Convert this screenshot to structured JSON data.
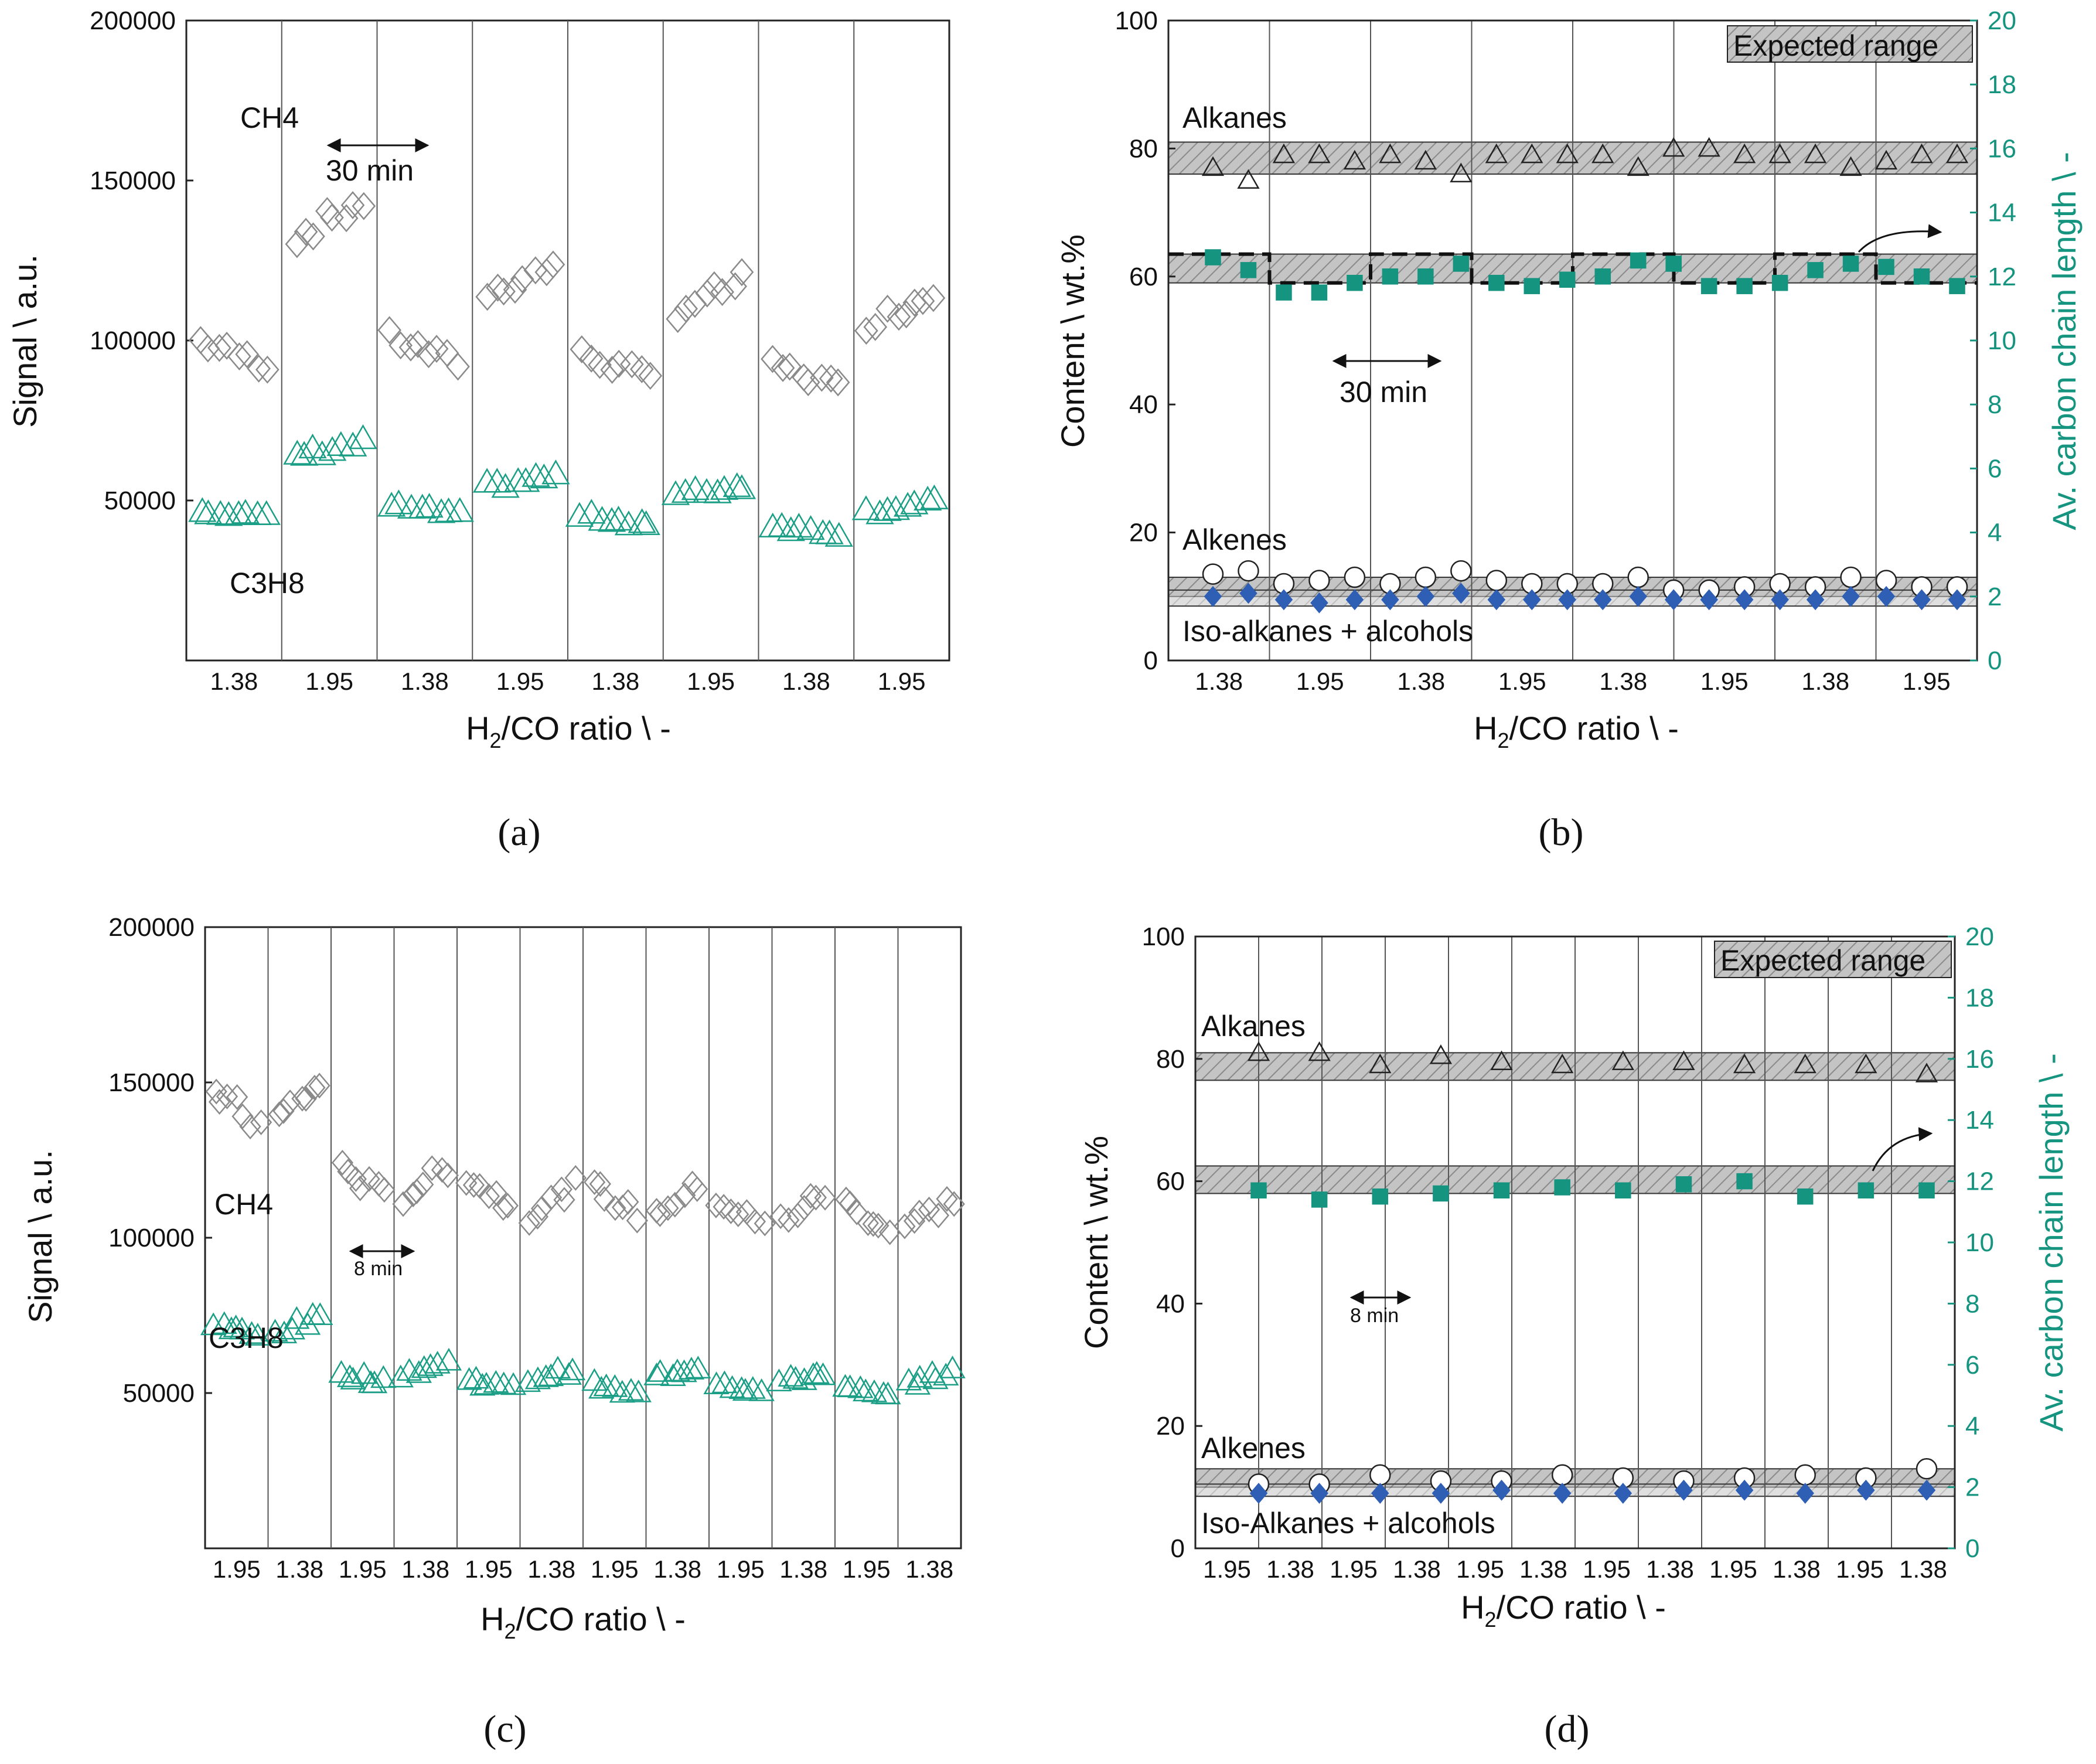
{
  "figure": {
    "panel_labels": [
      "(a)",
      "(b)",
      "(c)",
      "(d)"
    ],
    "colors": {
      "ch4": "#8a8a8a",
      "c3h8": "#1a9e85",
      "teal_square": "#159480",
      "blue_diamond": "#2e5fb5",
      "band_fill": "#bdbdbd",
      "right_axis": "#159480"
    }
  },
  "chart_data": [
    {
      "panel": "(a)",
      "type": "scatter",
      "ylabel": "Signal \\ a.u.",
      "xlabel_main": "H",
      "xlabel_sub": "2",
      "xlabel_rest": "/CO ratio \\ -",
      "ylim": [
        0,
        200000
      ],
      "yticks": [
        50000,
        100000,
        150000,
        200000
      ],
      "segment_count": 8,
      "segment_labels": [
        "1.38",
        "1.95",
        "1.38",
        "1.95",
        "1.38",
        "1.95",
        "1.38",
        "1.95"
      ],
      "annotations": {
        "ch4": "CH4",
        "c3h8": "C3H8",
        "interval": "30 min"
      },
      "series": [
        {
          "name": "CH4",
          "marker": "diamond",
          "segment_means": [
            96000,
            138000,
            97000,
            119000,
            92000,
            114000,
            89000,
            110000
          ]
        },
        {
          "name": "C3H8",
          "marker": "triangle",
          "segment_means": [
            46000,
            66000,
            47000,
            56000,
            44000,
            53000,
            41000,
            48000
          ]
        }
      ]
    },
    {
      "panel": "(b)",
      "type": "scatter",
      "ylabel": "Content \\ wt.%",
      "y2label": "Av. carbon chain length \\ -",
      "xlabel_main": "H",
      "xlabel_sub": "2",
      "xlabel_rest": "/CO ratio \\ -",
      "ylim": [
        0,
        100
      ],
      "yticks": [
        0,
        20,
        40,
        60,
        80,
        100
      ],
      "y2lim": [
        0,
        20
      ],
      "y2ticks": [
        0,
        2,
        4,
        6,
        8,
        10,
        12,
        14,
        16,
        18,
        20
      ],
      "segment_labels": [
        "1.38",
        "1.95",
        "1.38",
        "1.95",
        "1.38",
        "1.95",
        "1.38",
        "1.95"
      ],
      "annotations": {
        "legend": "Expected range",
        "alkanes": "Alkanes",
        "alkenes": "Alkenes",
        "iso": "Iso-alkanes + alcohols",
        "interval": "30 min"
      },
      "bands": {
        "alkanes": [
          76,
          81
        ],
        "chain": [
          59,
          63.5
        ],
        "alkenes": [
          10,
          13
        ],
        "iso": [
          8.5,
          11
        ]
      },
      "series": [
        {
          "name": "Alkanes",
          "marker": "triangle",
          "values": [
            77,
            75,
            79,
            79,
            78,
            79,
            78,
            76,
            79,
            79,
            79,
            79,
            77,
            80,
            80,
            79,
            79,
            79,
            77,
            78,
            79,
            79
          ]
        },
        {
          "name": "Alkenes",
          "marker": "circle",
          "values": [
            13.5,
            14,
            12,
            12.5,
            13,
            12,
            13,
            14,
            12.5,
            12,
            12,
            12,
            13,
            11,
            11,
            11.5,
            12,
            11.5,
            13,
            12.5,
            11.5,
            11.5
          ]
        },
        {
          "name": "Iso-alkanes + alcohols",
          "marker": "diamond",
          "values": [
            10,
            10.5,
            9.5,
            9,
            9.5,
            9.5,
            10,
            10.5,
            9.5,
            9.5,
            9.5,
            9.5,
            10,
            9.5,
            9.5,
            9.5,
            9.5,
            9.5,
            10,
            10,
            9.5,
            9.5
          ]
        },
        {
          "name": "Av. carbon chain length",
          "marker": "square",
          "axis": "right",
          "values": [
            12.6,
            12.2,
            11.5,
            11.5,
            11.8,
            12.0,
            12.0,
            12.4,
            11.8,
            11.7,
            11.9,
            12.0,
            12.5,
            12.4,
            11.7,
            11.7,
            11.8,
            12.2,
            12.4,
            12.3,
            12.0,
            11.7
          ]
        }
      ]
    },
    {
      "panel": "(c)",
      "type": "scatter",
      "ylabel": "Signal \\ a.u.",
      "xlabel_main": "H",
      "xlabel_sub": "2",
      "xlabel_rest": "/CO ratio \\ -",
      "ylim": [
        0,
        200000
      ],
      "yticks": [
        50000,
        100000,
        150000,
        200000
      ],
      "segment_labels": [
        "1.95",
        "1.38",
        "1.95",
        "1.38",
        "1.95",
        "1.38",
        "1.95",
        "1.38",
        "1.95",
        "1.38",
        "1.95",
        "1.38"
      ],
      "annotations": {
        "ch4": "CH4",
        "c3h8": "C3H8",
        "interval": "8 min"
      },
      "series": [
        {
          "name": "CH4",
          "marker": "diamond",
          "segment_means": [
            142000,
            144000,
            118000,
            118000,
            115000,
            112000,
            112000,
            112000,
            108000,
            110000,
            107000,
            108000
          ]
        },
        {
          "name": "C3H8",
          "marker": "triangle",
          "segment_means": [
            70000,
            72000,
            55000,
            58000,
            53000,
            56000,
            51000,
            57000,
            52000,
            55000,
            50000,
            55000
          ]
        }
      ]
    },
    {
      "panel": "(d)",
      "type": "scatter",
      "ylabel": "Content \\ wt.%",
      "y2label": "Av. carbon chain length \\ -",
      "xlabel_main": "H",
      "xlabel_sub": "2",
      "xlabel_rest": "/CO ratio \\ -",
      "ylim": [
        0,
        100
      ],
      "yticks": [
        0,
        20,
        40,
        60,
        80,
        100
      ],
      "y2lim": [
        0,
        20
      ],
      "y2ticks": [
        0,
        2,
        4,
        6,
        8,
        10,
        12,
        14,
        16,
        18,
        20
      ],
      "segment_labels": [
        "1.95",
        "1.38",
        "1.95",
        "1.38",
        "1.95",
        "1.38",
        "1.95",
        "1.38",
        "1.95",
        "1.38",
        "1.95",
        "1.38"
      ],
      "annotations": {
        "legend": "Expected range",
        "alkanes": "Alkanes",
        "alkenes": "Alkenes",
        "iso": "Iso-Alkanes + alcohols",
        "interval": "8 min"
      },
      "bands": {
        "alkanes": [
          76.5,
          81
        ],
        "chain": [
          58,
          62.5
        ],
        "alkenes": [
          10,
          13
        ],
        "iso": [
          8.5,
          10.5
        ]
      },
      "series": [
        {
          "name": "Alkanes",
          "marker": "triangle",
          "values": [
            81,
            81,
            79,
            80.5,
            79.5,
            79,
            79.5,
            79.5,
            79,
            79,
            79,
            77.5
          ]
        },
        {
          "name": "Alkenes",
          "marker": "circle",
          "values": [
            10.5,
            10.5,
            12,
            11,
            11,
            12,
            11.5,
            11,
            11.5,
            12,
            11.5,
            13
          ]
        },
        {
          "name": "Iso-Alkanes + alcohols",
          "marker": "diamond",
          "values": [
            9,
            9,
            9,
            9,
            9.5,
            9,
            9,
            9.5,
            9.5,
            9,
            9.5,
            9.5
          ]
        },
        {
          "name": "Av. carbon chain length",
          "marker": "square",
          "axis": "right",
          "values": [
            11.7,
            11.4,
            11.5,
            11.6,
            11.7,
            11.8,
            11.7,
            11.9,
            12.0,
            11.5,
            11.7,
            11.7
          ]
        }
      ]
    }
  ]
}
